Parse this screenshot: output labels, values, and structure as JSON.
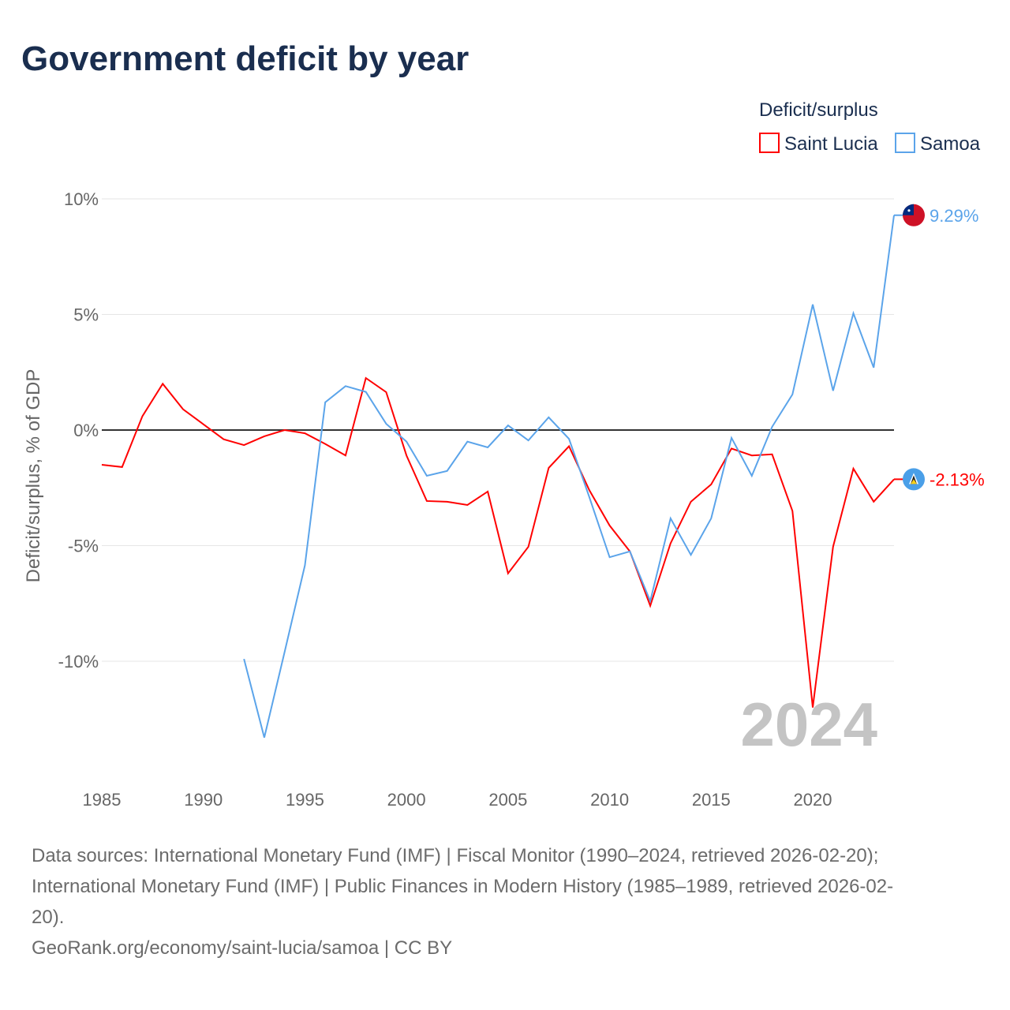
{
  "chart_data": {
    "type": "line",
    "title": "Government deficit by year",
    "xlabel": "",
    "ylabel": "Deficit/surplus, % of GDP",
    "legend_title": "Deficit/surplus",
    "legend_position": "top-right",
    "xlim": [
      1985,
      2024
    ],
    "ylim": [
      -14,
      10.5
    ],
    "x_ticks": [
      1985,
      1990,
      1995,
      2000,
      2005,
      2010,
      2015,
      2020
    ],
    "x_tick_labels": [
      "1985",
      "1990",
      "1995",
      "2000",
      "2005",
      "2010",
      "2015",
      "2020"
    ],
    "y_ticks": [
      10,
      5,
      0,
      -5,
      -10
    ],
    "y_tick_labels": [
      "10%",
      "5%",
      "0%",
      "-5%",
      "-10%"
    ],
    "year_watermark": "2024",
    "series": [
      {
        "name": "Saint Lucia",
        "color": "#ff0000",
        "end_label": "-2.13%",
        "flag": "saint-lucia-flag",
        "x": [
          1985,
          1986,
          1987,
          1988,
          1989,
          1990,
          1991,
          1992,
          1993,
          1994,
          1995,
          1996,
          1997,
          1998,
          1999,
          2000,
          2001,
          2002,
          2003,
          2004,
          2005,
          2006,
          2007,
          2008,
          2009,
          2010,
          2011,
          2012,
          2013,
          2014,
          2015,
          2016,
          2017,
          2018,
          2019,
          2020,
          2021,
          2022,
          2023,
          2024
        ],
        "values": [
          -1.5,
          -1.6,
          0.6,
          2.0,
          0.9,
          0.25,
          -0.4,
          -0.65,
          -0.27,
          0,
          -0.14,
          -0.6,
          -1.1,
          2.25,
          1.64,
          -1.1,
          -3.07,
          -3.1,
          -3.24,
          -2.66,
          -6.2,
          -5.05,
          -1.64,
          -0.7,
          -2.6,
          -4.13,
          -5.25,
          -7.6,
          -4.9,
          -3.1,
          -2.35,
          -0.8,
          -1.1,
          -1.05,
          -3.5,
          -12.0,
          -5.05,
          -1.67,
          -3.1,
          -2.13
        ]
      },
      {
        "name": "Samoa",
        "color": "#5ba4ea",
        "end_label": "9.29%",
        "flag": "samoa-flag",
        "x": [
          1992,
          1993,
          1994,
          1995,
          1996,
          1997,
          1998,
          1999,
          2000,
          2001,
          2002,
          2003,
          2004,
          2005,
          2006,
          2007,
          2008,
          2009,
          2010,
          2011,
          2012,
          2013,
          2014,
          2015,
          2016,
          2017,
          2018,
          2019,
          2020,
          2021,
          2022,
          2023,
          2024
        ],
        "values": [
          -9.9,
          -13.3,
          -9.6,
          -5.85,
          1.2,
          1.9,
          1.65,
          0.27,
          -0.5,
          -1.98,
          -1.77,
          -0.5,
          -0.75,
          0.2,
          -0.45,
          0.55,
          -0.38,
          -2.9,
          -5.5,
          -5.25,
          -7.4,
          -3.82,
          -5.4,
          -3.82,
          -0.34,
          -1.98,
          0.14,
          1.54,
          5.43,
          1.7,
          5.05,
          2.7,
          9.29
        ]
      }
    ]
  },
  "footer": {
    "sources_line1": "Data sources: International Monetary Fund (IMF) | Fiscal Monitor (1990–2024, retrieved 2026-02-20);",
    "sources_line2": "International Monetary Fund (IMF) | Public Finances in Modern History (1985–1989, retrieved 2026-02-",
    "sources_line3": "20).",
    "credit": "GeoRank.org/economy/saint-lucia/samoa | CC BY"
  }
}
